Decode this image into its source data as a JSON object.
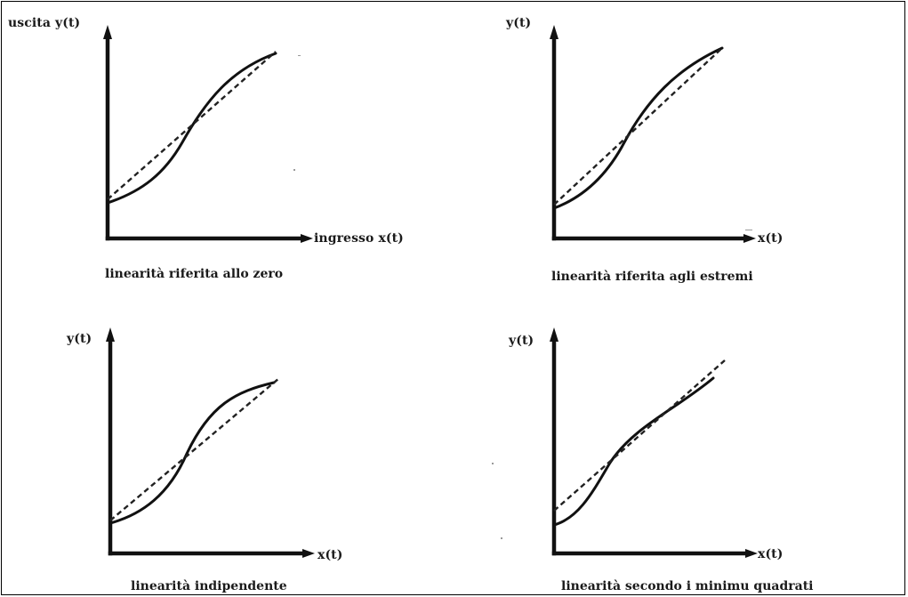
{
  "panels": [
    {
      "y_label": "uscita y(t)",
      "x_label": "ingresso x(t)",
      "caption": "linearità riferita allo zero"
    },
    {
      "y_label": "y(t)",
      "x_label": "x(t)",
      "caption": "linearità riferita agli estremi"
    },
    {
      "y_label": "y(t)",
      "x_label": "x(t)",
      "caption": "linearità indipendente"
    },
    {
      "y_label": "y(t)",
      "x_label": "x(t)",
      "caption": "linearità secondo i minimu quadrati"
    }
  ],
  "colors": {
    "ink": "#111111",
    "background": "#ffffff"
  }
}
